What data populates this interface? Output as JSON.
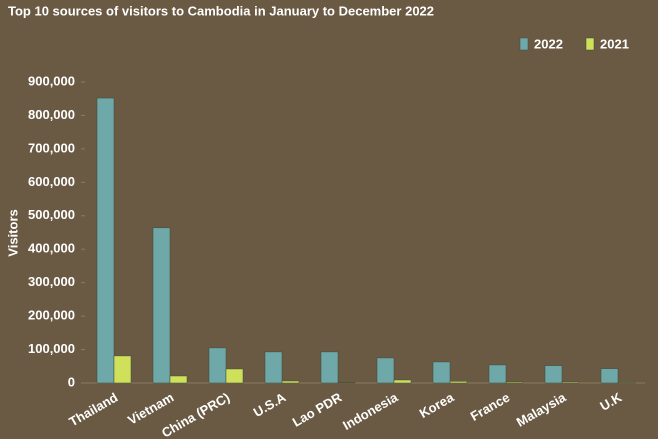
{
  "chart_data": {
    "type": "bar",
    "title": "Top 10 sources of visitors to Cambodia in January to December 2022",
    "y_label": "Visitors",
    "categories": [
      "Thailand",
      "Vietnam",
      "China (PRC)",
      "U.S.A",
      "Lao PDR",
      "Indonesia",
      "Korea",
      "France",
      "Malaysia",
      "U.K"
    ],
    "series": [
      {
        "name": "2022",
        "color": "#6fa8a8",
        "values": [
          852000,
          464000,
          105000,
          93000,
          93000,
          75000,
          63000,
          54000,
          52000,
          43000
        ]
      },
      {
        "name": "2021",
        "color": "#cfe05a",
        "values": [
          81000,
          21000,
          42000,
          6000,
          1000,
          9000,
          5000,
          3000,
          3000,
          2000
        ]
      }
    ],
    "ylim": [
      0,
      900000
    ],
    "yticks": [
      0,
      {
        "value": 100000,
        "label": "100,000"
      },
      {
        "value": 200000,
        "label": "200,000"
      },
      {
        "value": 300000,
        "label": "300,000"
      },
      {
        "value": 400000,
        "label": "400,000"
      },
      {
        "value": 500000,
        "label": "500,000"
      },
      {
        "value": 600000,
        "label": "600,000"
      },
      {
        "value": 700000,
        "label": "700,000"
      },
      {
        "value": 800000,
        "label": "800,000"
      },
      {
        "value": 900000,
        "label": "900,000"
      }
    ],
    "legend": "top-right"
  }
}
